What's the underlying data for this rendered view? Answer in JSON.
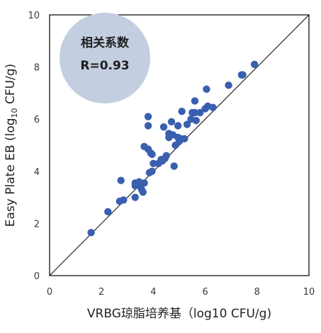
{
  "chart_data": {
    "type": "scatter",
    "xlabel": "VRBG琼脂培养基（log10 CFU/g)",
    "ylabel_main": "Easy Plate EB (log",
    "ylabel_sub": "10",
    "ylabel_tail": " CFU/g)",
    "xlim": [
      0,
      10
    ],
    "ylim": [
      0,
      10
    ],
    "x_ticks": [
      "0",
      "2",
      "4",
      "6",
      "8",
      "10"
    ],
    "y_ticks": [
      "0",
      "2",
      "4",
      "6",
      "8",
      "10"
    ],
    "reference_line": "y = x",
    "grid": false,
    "annotation": {
      "line1": "相关系数",
      "line2": "R=0.93",
      "color": "#c3cee0"
    },
    "marker_color": "#3a5fae",
    "points": [
      {
        "x": 1.6,
        "y": 1.65
      },
      {
        "x": 2.25,
        "y": 2.45
      },
      {
        "x": 2.7,
        "y": 2.85
      },
      {
        "x": 2.85,
        "y": 2.9
      },
      {
        "x": 2.75,
        "y": 3.65
      },
      {
        "x": 3.3,
        "y": 3.0
      },
      {
        "x": 3.3,
        "y": 3.45
      },
      {
        "x": 3.3,
        "y": 3.55
      },
      {
        "x": 3.45,
        "y": 3.45
      },
      {
        "x": 3.45,
        "y": 3.6
      },
      {
        "x": 3.55,
        "y": 3.3
      },
      {
        "x": 3.6,
        "y": 3.2
      },
      {
        "x": 3.65,
        "y": 3.55
      },
      {
        "x": 3.65,
        "y": 4.95
      },
      {
        "x": 3.85,
        "y": 3.95
      },
      {
        "x": 3.95,
        "y": 4.0
      },
      {
        "x": 3.8,
        "y": 4.85
      },
      {
        "x": 3.9,
        "y": 4.7
      },
      {
        "x": 3.95,
        "y": 4.65
      },
      {
        "x": 4.0,
        "y": 4.3
      },
      {
        "x": 4.2,
        "y": 4.3
      },
      {
        "x": 4.3,
        "y": 4.45
      },
      {
        "x": 4.35,
        "y": 4.4
      },
      {
        "x": 4.45,
        "y": 4.5
      },
      {
        "x": 4.5,
        "y": 4.6
      },
      {
        "x": 3.8,
        "y": 5.75
      },
      {
        "x": 3.8,
        "y": 6.1
      },
      {
        "x": 4.4,
        "y": 5.7
      },
      {
        "x": 4.6,
        "y": 5.3
      },
      {
        "x": 4.6,
        "y": 5.45
      },
      {
        "x": 4.7,
        "y": 5.9
      },
      {
        "x": 4.75,
        "y": 5.4
      },
      {
        "x": 4.8,
        "y": 4.2
      },
      {
        "x": 4.85,
        "y": 5.0
      },
      {
        "x": 4.95,
        "y": 5.75
      },
      {
        "x": 4.95,
        "y": 5.3
      },
      {
        "x": 5.0,
        "y": 5.15
      },
      {
        "x": 5.05,
        "y": 5.25
      },
      {
        "x": 5.1,
        "y": 6.3
      },
      {
        "x": 5.2,
        "y": 5.25
      },
      {
        "x": 5.3,
        "y": 5.8
      },
      {
        "x": 5.45,
        "y": 6.0
      },
      {
        "x": 5.5,
        "y": 6.25
      },
      {
        "x": 5.6,
        "y": 6.25
      },
      {
        "x": 5.6,
        "y": 6.7
      },
      {
        "x": 5.65,
        "y": 5.95
      },
      {
        "x": 5.8,
        "y": 6.25
      },
      {
        "x": 6.0,
        "y": 6.4
      },
      {
        "x": 6.05,
        "y": 7.15
      },
      {
        "x": 6.1,
        "y": 6.5
      },
      {
        "x": 6.3,
        "y": 6.45
      },
      {
        "x": 6.9,
        "y": 7.3
      },
      {
        "x": 7.4,
        "y": 7.7
      },
      {
        "x": 7.45,
        "y": 7.7
      },
      {
        "x": 7.9,
        "y": 8.1
      }
    ]
  }
}
